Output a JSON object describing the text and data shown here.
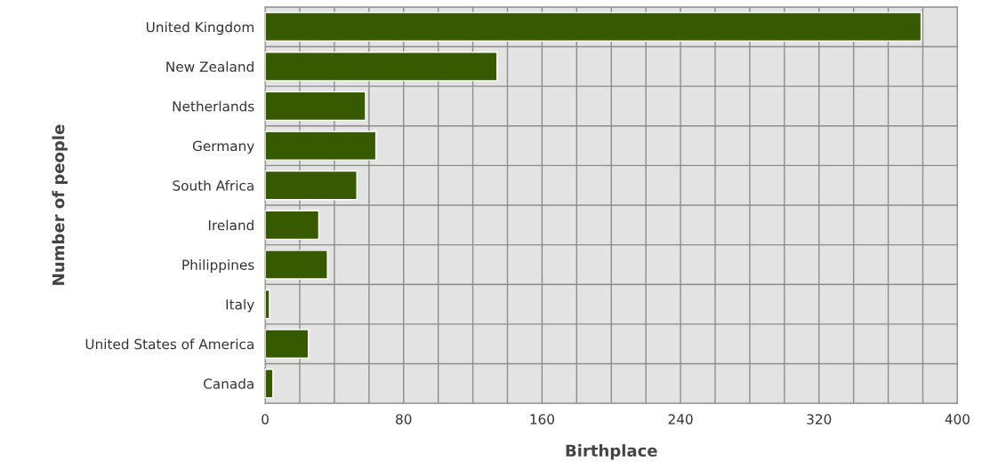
{
  "chart_data": {
    "type": "bar",
    "orientation": "horizontal",
    "xlabel": "Birthplace",
    "ylabel": "Number of people",
    "categories": [
      "United Kingdom",
      "New Zealand",
      "Netherlands",
      "Germany",
      "South Africa",
      "Ireland",
      "Philippines",
      "Italy",
      "United States of America",
      "Canada"
    ],
    "values": [
      379,
      134,
      58,
      64,
      53,
      31,
      36,
      2.5,
      25,
      4.5
    ],
    "color": "#375a00",
    "xlim": [
      0,
      400
    ],
    "xticks": [
      0,
      {
        "value": 20,
        "label": null
      },
      {
        "value": 40,
        "label": null
      },
      {
        "value": 60,
        "label": null
      },
      80,
      {
        "value": 100,
        "label": null
      },
      {
        "value": 120,
        "label": null
      },
      {
        "value": 140,
        "label": null
      },
      160,
      {
        "value": 180,
        "label": null
      },
      {
        "value": 200,
        "label": null
      },
      {
        "value": 220,
        "label": null
      },
      240,
      {
        "value": 260,
        "label": null
      },
      {
        "value": 280,
        "label": null
      },
      {
        "value": 300,
        "label": null
      },
      320,
      {
        "value": 340,
        "label": null
      },
      {
        "value": 360,
        "label": null
      },
      {
        "value": 380,
        "label": null
      },
      400
    ],
    "grid": true
  }
}
